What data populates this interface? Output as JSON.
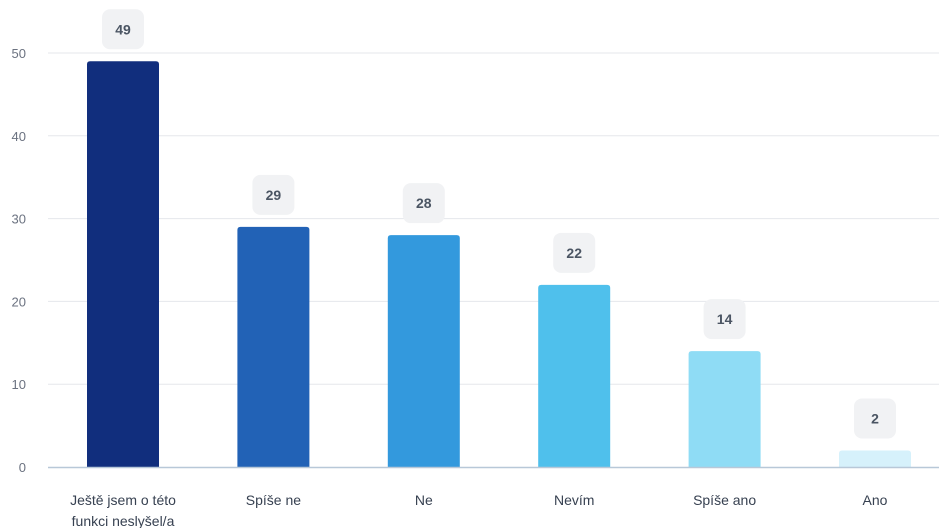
{
  "chart_data": {
    "type": "bar",
    "title": "",
    "xlabel": "",
    "ylabel": "",
    "ylim": [
      0,
      50
    ],
    "yticks": [
      0,
      10,
      20,
      30,
      40,
      50
    ],
    "grid": true,
    "categories": [
      [
        "Ještě jsem o této",
        "funkci neslyšel/a"
      ],
      [
        "Spíše ne"
      ],
      [
        "Ne"
      ],
      [
        "Nevím"
      ],
      [
        "Spíše ano"
      ],
      [
        "Ano"
      ]
    ],
    "values": [
      49,
      29,
      28,
      22,
      14,
      2
    ],
    "colors": [
      "#112e7d",
      "#2262b6",
      "#3399dd",
      "#4fc0ec",
      "#8fdcf5",
      "#d6f1fb"
    ],
    "value_label_bg": "#f1f2f4",
    "grid_color": "#e5e7eb",
    "axis_color": "#b8c8d8"
  }
}
